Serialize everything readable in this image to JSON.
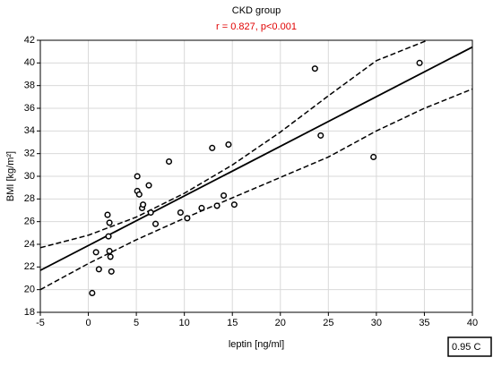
{
  "chart_data": {
    "type": "scatter",
    "title": "CKD group",
    "subtitle": "r = 0.827, p<0.001",
    "xlabel": "leptin [ng/ml]",
    "ylabel": "BMI [kg/m²]",
    "legend_text": "0.95 C",
    "xlim": [
      -5,
      40
    ],
    "ylim": [
      18,
      42
    ],
    "xticks": [
      -5,
      0,
      5,
      10,
      15,
      20,
      25,
      30,
      35,
      40
    ],
    "yticks": [
      18,
      20,
      22,
      24,
      26,
      28,
      30,
      32,
      34,
      36,
      38,
      40,
      42
    ],
    "grid": true,
    "series": [
      {
        "color": "#000000",
        "x": [
          0.4,
          0.8,
          1.1,
          2.0,
          2.2,
          2.1,
          2.2,
          2.3,
          2.4,
          5.1,
          5.1,
          5.3,
          5.6,
          5.7,
          6.3,
          6.5,
          7.0,
          8.4,
          9.6,
          10.3,
          11.8,
          12.9,
          13.4,
          14.1,
          14.6,
          15.2,
          23.6,
          24.2,
          29.7,
          34.5
        ],
        "values": [
          19.7,
          23.3,
          21.8,
          26.6,
          25.9,
          24.7,
          23.4,
          22.9,
          21.6,
          30.0,
          28.7,
          28.4,
          27.2,
          27.5,
          29.2,
          26.8,
          25.8,
          31.3,
          26.8,
          26.3,
          27.2,
          32.5,
          27.4,
          28.3,
          32.8,
          27.5,
          39.5,
          33.6,
          31.7,
          40.0
        ]
      }
    ],
    "fit_line": {
      "x": [
        -5,
        40
      ],
      "values": [
        21.7,
        41.4
      ]
    },
    "upper_band": {
      "x": [
        -5,
        0,
        5,
        10,
        15,
        20,
        25,
        30,
        36.5
      ],
      "values": [
        23.7,
        24.8,
        26.4,
        28.5,
        31.0,
        33.9,
        37.1,
        40.2,
        42.4
      ]
    },
    "lower_band": {
      "x": [
        -5,
        0,
        5,
        10,
        15,
        20,
        25,
        30,
        35,
        40
      ],
      "values": [
        20.0,
        22.3,
        24.4,
        26.3,
        28.1,
        29.9,
        31.7,
        34.0,
        36.0,
        37.7
      ]
    }
  }
}
